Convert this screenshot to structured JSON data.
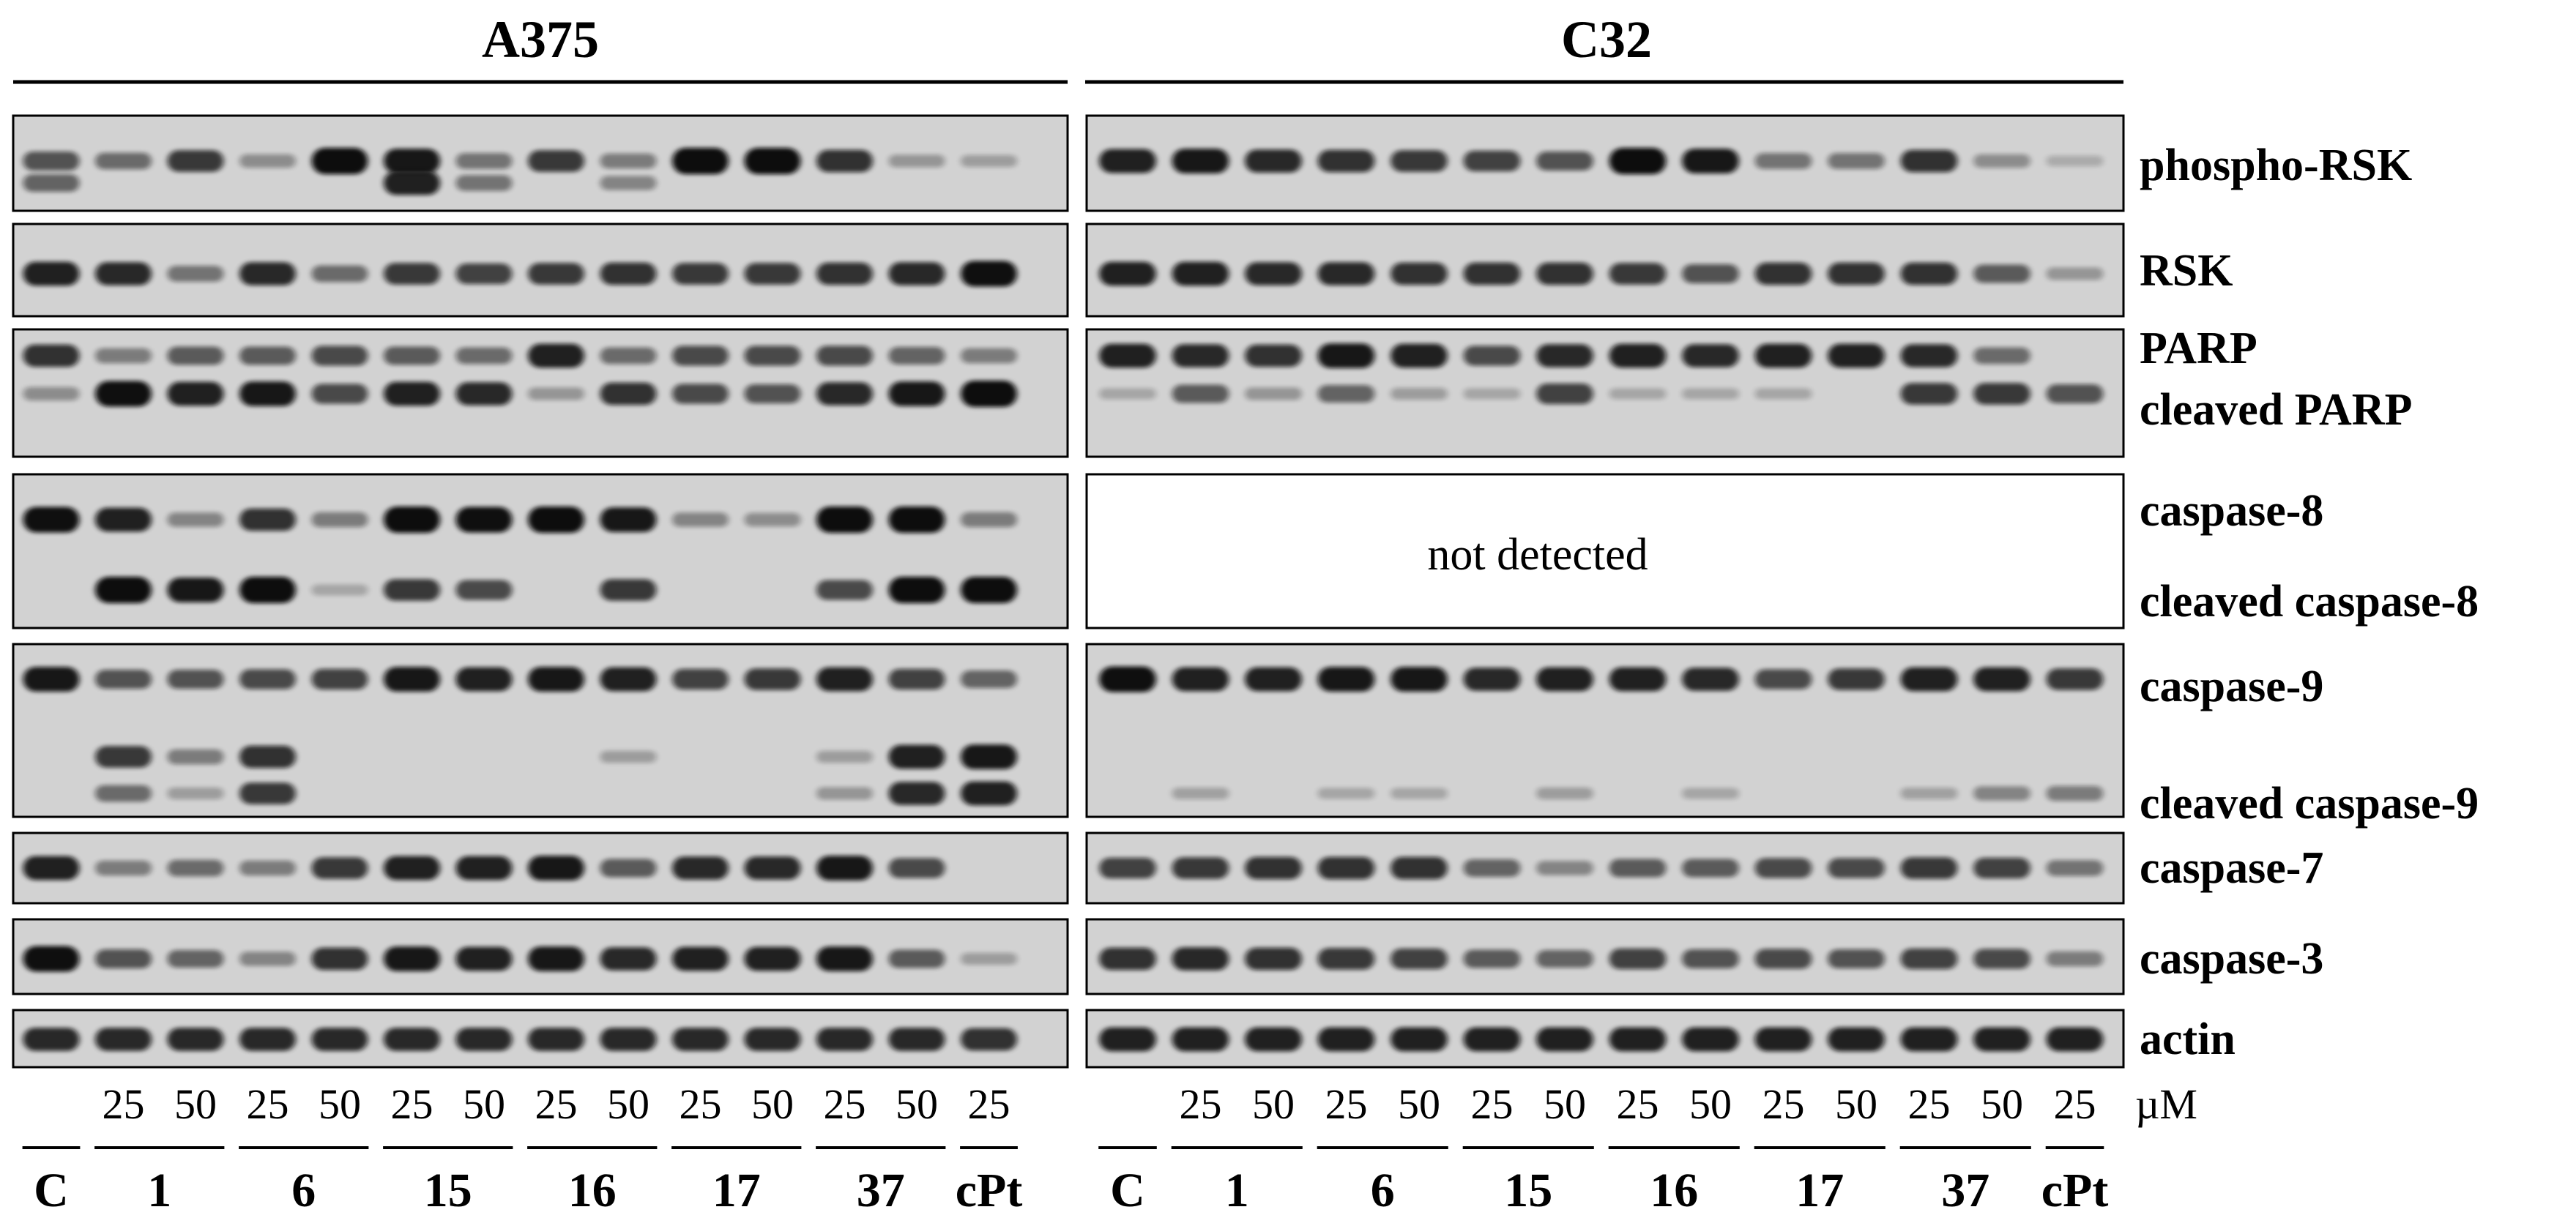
{
  "figure": {
    "panels": [
      {
        "id": "a375",
        "title": "A375",
        "lanes": 14,
        "lane_doses": [
          "",
          "25",
          "50",
          "25",
          "50",
          "25",
          "50",
          "25",
          "50",
          "25",
          "50",
          "25",
          "50",
          "25"
        ],
        "groups": [
          {
            "label": "C",
            "lanes": 1
          },
          {
            "label": "1",
            "lanes": 2
          },
          {
            "label": "6",
            "lanes": 2
          },
          {
            "label": "15",
            "lanes": 2
          },
          {
            "label": "16",
            "lanes": 2
          },
          {
            "label": "17",
            "lanes": 2
          },
          {
            "label": "37",
            "lanes": 2
          },
          {
            "label": "cPt",
            "lanes": 1
          }
        ],
        "blots": {
          "phospho_rsk": [
            [
              0.55,
              0.45
            ],
            [
              0.4
            ],
            [
              0.7
            ],
            [
              0.2
            ],
            [
              1.0
            ],
            [
              0.9,
              0.85
            ],
            [
              0.35,
              0.35
            ],
            [
              0.7
            ],
            [
              0.3,
              0.25
            ],
            [
              1.0
            ],
            [
              1.0
            ],
            [
              0.75
            ],
            [
              0.15
            ],
            [
              0.1
            ]
          ],
          "rsk": [
            [
              0.85
            ],
            [
              0.8
            ],
            [
              0.35
            ],
            [
              0.8
            ],
            [
              0.4
            ],
            [
              0.7
            ],
            [
              0.65
            ],
            [
              0.7
            ],
            [
              0.75
            ],
            [
              0.7
            ],
            [
              0.7
            ],
            [
              0.75
            ],
            [
              0.8
            ],
            [
              0.95
            ]
          ],
          "parp": [
            [
              0.75,
              0.2
            ],
            [
              0.3,
              0.95
            ],
            [
              0.5,
              0.85
            ],
            [
              0.5,
              0.9
            ],
            [
              0.6,
              0.6
            ],
            [
              0.5,
              0.85
            ],
            [
              0.4,
              0.8
            ],
            [
              0.85,
              0.15
            ],
            [
              0.4,
              0.75
            ],
            [
              0.6,
              0.6
            ],
            [
              0.6,
              0.55
            ],
            [
              0.6,
              0.8
            ],
            [
              0.45,
              0.9
            ],
            [
              0.3,
              1.0
            ]
          ],
          "caspase8": [
            [
              0.95,
              0
            ],
            [
              0.85,
              1.0
            ],
            [
              0.25,
              0.9
            ],
            [
              0.75,
              1.0
            ],
            [
              0.3,
              0.05
            ],
            [
              1.0,
              0.7
            ],
            [
              0.95,
              0.6
            ],
            [
              1.0,
              0
            ],
            [
              0.9,
              0.7
            ],
            [
              0.25,
              0
            ],
            [
              0.2,
              0
            ],
            [
              1.0,
              0.6
            ],
            [
              1.0,
              1.0
            ],
            [
              0.3,
              1.0
            ]
          ],
          "caspase9": [
            [
              0.9,
              0,
              0
            ],
            [
              0.55,
              0.7,
              0.4
            ],
            [
              0.55,
              0.3,
              0.1
            ],
            [
              0.6,
              0.75,
              0.7
            ],
            [
              0.65,
              0,
              0
            ],
            [
              0.9,
              0,
              0
            ],
            [
              0.85,
              0,
              0
            ],
            [
              0.9,
              0,
              0
            ],
            [
              0.85,
              0.1,
              0
            ],
            [
              0.65,
              0,
              0
            ],
            [
              0.7,
              0,
              0
            ],
            [
              0.85,
              0.1,
              0.15
            ],
            [
              0.65,
              0.85,
              0.8
            ],
            [
              0.45,
              0.9,
              0.85
            ]
          ],
          "caspase7": [
            [
              0.85
            ],
            [
              0.3
            ],
            [
              0.4
            ],
            [
              0.3
            ],
            [
              0.7
            ],
            [
              0.85
            ],
            [
              0.85
            ],
            [
              0.9
            ],
            [
              0.5
            ],
            [
              0.8
            ],
            [
              0.8
            ],
            [
              0.9
            ],
            [
              0.6
            ],
            [
              0
            ]
          ],
          "caspase3": [
            [
              0.95
            ],
            [
              0.55
            ],
            [
              0.45
            ],
            [
              0.25
            ],
            [
              0.75
            ],
            [
              0.9
            ],
            [
              0.85
            ],
            [
              0.9
            ],
            [
              0.8
            ],
            [
              0.85
            ],
            [
              0.85
            ],
            [
              0.9
            ],
            [
              0.5
            ],
            [
              0.1
            ]
          ],
          "actin": [
            [
              0.8
            ],
            [
              0.8
            ],
            [
              0.8
            ],
            [
              0.8
            ],
            [
              0.8
            ],
            [
              0.8
            ],
            [
              0.8
            ],
            [
              0.8
            ],
            [
              0.8
            ],
            [
              0.8
            ],
            [
              0.8
            ],
            [
              0.8
            ],
            [
              0.8
            ],
            [
              0.75
            ]
          ]
        }
      },
      {
        "id": "c32",
        "title": "C32",
        "lanes": 14,
        "lane_doses": [
          "",
          "25",
          "50",
          "25",
          "50",
          "25",
          "50",
          "25",
          "50",
          "25",
          "50",
          "25",
          "50",
          "25"
        ],
        "groups": [
          {
            "label": "C",
            "lanes": 1
          },
          {
            "label": "1",
            "lanes": 2
          },
          {
            "label": "6",
            "lanes": 2
          },
          {
            "label": "15",
            "lanes": 2
          },
          {
            "label": "16",
            "lanes": 2
          },
          {
            "label": "17",
            "lanes": 2
          },
          {
            "label": "37",
            "lanes": 2
          },
          {
            "label": "cPt",
            "lanes": 1
          }
        ],
        "blots": {
          "phospho_rsk": [
            [
              0.85
            ],
            [
              0.9
            ],
            [
              0.8
            ],
            [
              0.75
            ],
            [
              0.7
            ],
            [
              0.65
            ],
            [
              0.55
            ],
            [
              1.0
            ],
            [
              0.9
            ],
            [
              0.35
            ],
            [
              0.35
            ],
            [
              0.75
            ],
            [
              0.2
            ],
            [
              0.02
            ]
          ],
          "rsk": [
            [
              0.85
            ],
            [
              0.85
            ],
            [
              0.8
            ],
            [
              0.8
            ],
            [
              0.75
            ],
            [
              0.75
            ],
            [
              0.75
            ],
            [
              0.7
            ],
            [
              0.55
            ],
            [
              0.75
            ],
            [
              0.75
            ],
            [
              0.75
            ],
            [
              0.5
            ],
            [
              0.15
            ]
          ],
          "parp": [
            [
              0.85,
              0.05
            ],
            [
              0.8,
              0.5
            ],
            [
              0.75,
              0.15
            ],
            [
              0.9,
              0.45
            ],
            [
              0.85,
              0.1
            ],
            [
              0.6,
              0.05
            ],
            [
              0.8,
              0.65
            ],
            [
              0.85,
              0.05
            ],
            [
              0.8,
              0.05
            ],
            [
              0.85,
              0.05
            ],
            [
              0.85,
              0
            ],
            [
              0.8,
              0.7
            ],
            [
              0.4,
              0.7
            ],
            [
              0,
              0.55
            ]
          ],
          "caspase8": null,
          "caspase9": [
            [
              0.95,
              0,
              0
            ],
            [
              0.85,
              0,
              0.08
            ],
            [
              0.85,
              0,
              0
            ],
            [
              0.9,
              0,
              0.05
            ],
            [
              0.9,
              0,
              0.05
            ],
            [
              0.8,
              0,
              0
            ],
            [
              0.85,
              0,
              0.1
            ],
            [
              0.85,
              0,
              0
            ],
            [
              0.8,
              0,
              0.05
            ],
            [
              0.6,
              0,
              0
            ],
            [
              0.7,
              0,
              0
            ],
            [
              0.85,
              0,
              0.08
            ],
            [
              0.85,
              0,
              0.25
            ],
            [
              0.7,
              0,
              0.3
            ]
          ],
          "caspase7": [
            [
              0.65
            ],
            [
              0.7
            ],
            [
              0.75
            ],
            [
              0.75
            ],
            [
              0.75
            ],
            [
              0.45
            ],
            [
              0.25
            ],
            [
              0.5
            ],
            [
              0.5
            ],
            [
              0.6
            ],
            [
              0.6
            ],
            [
              0.7
            ],
            [
              0.65
            ],
            [
              0.35
            ]
          ],
          "caspase3": [
            [
              0.75
            ],
            [
              0.8
            ],
            [
              0.75
            ],
            [
              0.7
            ],
            [
              0.65
            ],
            [
              0.5
            ],
            [
              0.45
            ],
            [
              0.65
            ],
            [
              0.55
            ],
            [
              0.6
            ],
            [
              0.55
            ],
            [
              0.65
            ],
            [
              0.6
            ],
            [
              0.3
            ]
          ],
          "actin": [
            [
              0.85
            ],
            [
              0.85
            ],
            [
              0.85
            ],
            [
              0.85
            ],
            [
              0.85
            ],
            [
              0.85
            ],
            [
              0.85
            ],
            [
              0.85
            ],
            [
              0.85
            ],
            [
              0.85
            ],
            [
              0.85
            ],
            [
              0.85
            ],
            [
              0.85
            ],
            [
              0.85
            ]
          ]
        }
      }
    ],
    "row_labels": {
      "phospho_rsk": "phospho-RSK",
      "rsk": "RSK",
      "parp": "PARP",
      "cleaved_parp": "cleaved PARP",
      "caspase8": "caspase-8",
      "cleaved_caspase8": "cleaved caspase-8",
      "caspase9": "caspase-9",
      "cleaved_caspase9": "cleaved caspase-9",
      "caspase7": "caspase-7",
      "caspase3": "caspase-3",
      "actin": "actin"
    },
    "not_detected_text": "not detected",
    "unit_label": "µM",
    "colors": {
      "membrane": "#d2d2d2",
      "band": "#0a0a0a",
      "empty_panel": "#ffffff"
    }
  }
}
